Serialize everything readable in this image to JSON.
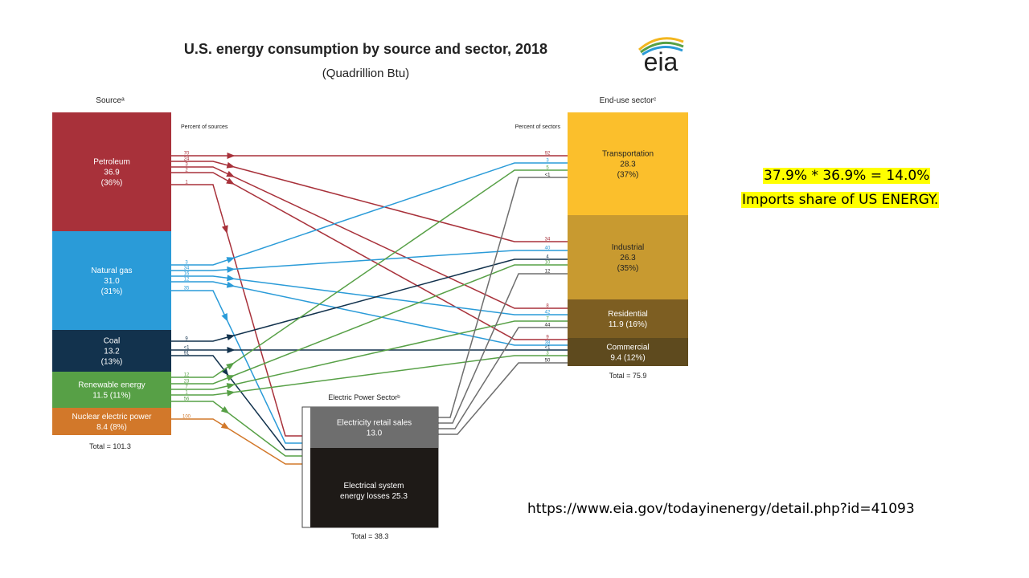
{
  "diagram": {
    "title": "U.S. energy consumption by source and sector, 2018",
    "subtitle": "(Quadrillion Btu)",
    "logo_text": "eia",
    "source_header": "Sourceᵃ",
    "sector_header": "End-use sectorᶜ",
    "percent_sources_label": "Percent of sources",
    "percent_sectors_label": "Percent of sectors",
    "source_total": "Total = 101.3",
    "sector_total": "Total = 75.9",
    "electric_header": "Electric Power Sectorᵇ",
    "electric_total": "Total = 38.3",
    "sources": [
      {
        "id": "petroleum",
        "name": "Petroleum",
        "value": "36.9",
        "share": "(36%)",
        "color": "#a8313a"
      },
      {
        "id": "gas",
        "name": "Natural gas",
        "value": "31.0",
        "share": "(31%)",
        "color": "#2a9bd8"
      },
      {
        "id": "coal",
        "name": "Coal",
        "value": "13.2",
        "share": "(13%)",
        "color": "#12324d"
      },
      {
        "id": "renewable",
        "name": "Renewable energy",
        "value": "11.5 (11%)",
        "share": "",
        "color": "#57a046"
      },
      {
        "id": "nuclear",
        "name": "Nuclear electric power",
        "value": "8.4 (8%)",
        "share": "",
        "color": "#d2782a"
      }
    ],
    "sectors": [
      {
        "id": "transportation",
        "name": "Transportation",
        "value": "28.3",
        "share": "(37%)",
        "color": "#fbbf2c"
      },
      {
        "id": "industrial",
        "name": "Industrial",
        "value": "26.3",
        "share": "(35%)",
        "color": "#c89a30"
      },
      {
        "id": "residential",
        "name": "Residential",
        "value": "11.9 (16%)",
        "share": "",
        "color": "#7d5e22"
      },
      {
        "id": "commercial",
        "name": "Commercial",
        "value": "9.4 (12%)",
        "share": "",
        "color": "#5e4a1e"
      }
    ],
    "electric": {
      "retail_label": "Electricity retail sales",
      "retail_value": "13.0",
      "losses_label": "Electrical system energy losses",
      "losses_value": "25.3",
      "retail_color": "#6e6e6e",
      "losses_color": "#1e1a17"
    },
    "flows": [
      {
        "from": "petroleum",
        "to": "transportation",
        "src_pct": "70",
        "sec_pct": "92"
      },
      {
        "from": "petroleum",
        "to": "industrial",
        "src_pct": "24",
        "sec_pct": "34"
      },
      {
        "from": "petroleum",
        "to": "residential",
        "src_pct": "3",
        "sec_pct": "8"
      },
      {
        "from": "petroleum",
        "to": "commercial",
        "src_pct": "2",
        "sec_pct": "9"
      },
      {
        "from": "petroleum",
        "to": "electric",
        "src_pct": "1",
        "sec_pct": ""
      },
      {
        "from": "gas",
        "to": "transportation",
        "src_pct": "3",
        "sec_pct": "3"
      },
      {
        "from": "gas",
        "to": "industrial",
        "src_pct": "34",
        "sec_pct": "40"
      },
      {
        "from": "gas",
        "to": "residential",
        "src_pct": "16",
        "sec_pct": "42"
      },
      {
        "from": "gas",
        "to": "commercial",
        "src_pct": "12",
        "sec_pct": "38"
      },
      {
        "from": "gas",
        "to": "electric",
        "src_pct": "35",
        "sec_pct": ""
      },
      {
        "from": "coal",
        "to": "industrial",
        "src_pct": "9",
        "sec_pct": "4"
      },
      {
        "from": "coal",
        "to": "commercial",
        "src_pct": "<1",
        "sec_pct": "<1"
      },
      {
        "from": "coal",
        "to": "electric",
        "src_pct": "91",
        "sec_pct": ""
      },
      {
        "from": "renewable",
        "to": "transportation",
        "src_pct": "12",
        "sec_pct": "5"
      },
      {
        "from": "renewable",
        "to": "industrial",
        "src_pct": "23",
        "sec_pct": "10"
      },
      {
        "from": "renewable",
        "to": "residential",
        "src_pct": "7",
        "sec_pct": "7"
      },
      {
        "from": "renewable",
        "to": "commercial",
        "src_pct": "1",
        "sec_pct": "3"
      },
      {
        "from": "renewable",
        "to": "electric",
        "src_pct": "56",
        "sec_pct": ""
      },
      {
        "from": "nuclear",
        "to": "electric",
        "src_pct": "100",
        "sec_pct": ""
      },
      {
        "from": "retail",
        "to": "transportation",
        "src_pct": "",
        "sec_pct": "<1"
      },
      {
        "from": "retail",
        "to": "industrial",
        "src_pct": "",
        "sec_pct": "12"
      },
      {
        "from": "retail",
        "to": "residential",
        "src_pct": "",
        "sec_pct": "44"
      },
      {
        "from": "retail",
        "to": "commercial",
        "src_pct": "",
        "sec_pct": "50"
      }
    ]
  },
  "annotation": {
    "line1": "37.9% * 36.9% = 14.0%",
    "line2": "Imports share of US ENERGY.",
    "url": "https://www.eia.gov/todayinenergy/detail.php?id=41093"
  }
}
